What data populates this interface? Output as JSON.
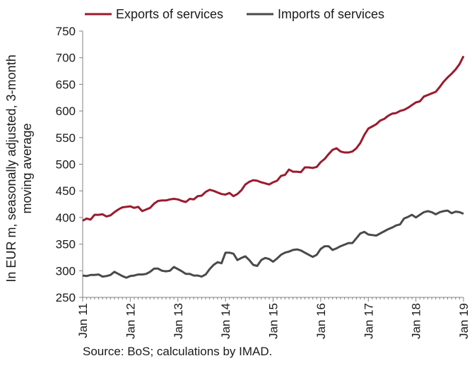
{
  "chart_data": {
    "type": "line",
    "ylabel_lines": [
      "In EUR m, seasonally adjusted, 3-month",
      "moving average"
    ],
    "ylim": [
      250,
      750
    ],
    "yticks": [
      250,
      300,
      350,
      400,
      450,
      500,
      550,
      600,
      650,
      700,
      750
    ],
    "xlim": [
      "2011-01",
      "2019-01"
    ],
    "xticks": [
      "Jan 11",
      "Jan 12",
      "Jan 13",
      "Jan 14",
      "Jan 15",
      "Jan 16",
      "Jan 17",
      "Jan 18",
      "Jan 19"
    ],
    "legend_position": "top",
    "grid": false,
    "x_months": [
      "2011-01",
      "2011-02",
      "2011-03",
      "2011-04",
      "2011-05",
      "2011-06",
      "2011-07",
      "2011-08",
      "2011-09",
      "2011-10",
      "2011-11",
      "2011-12",
      "2012-01",
      "2012-02",
      "2012-03",
      "2012-04",
      "2012-05",
      "2012-06",
      "2012-07",
      "2012-08",
      "2012-09",
      "2012-10",
      "2012-11",
      "2012-12",
      "2013-01",
      "2013-02",
      "2013-03",
      "2013-04",
      "2013-05",
      "2013-06",
      "2013-07",
      "2013-08",
      "2013-09",
      "2013-10",
      "2013-11",
      "2013-12",
      "2014-01",
      "2014-02",
      "2014-03",
      "2014-04",
      "2014-05",
      "2014-06",
      "2014-07",
      "2014-08",
      "2014-09",
      "2014-10",
      "2014-11",
      "2014-12",
      "2015-01",
      "2015-02",
      "2015-03",
      "2015-04",
      "2015-05",
      "2015-06",
      "2015-07",
      "2015-08",
      "2015-09",
      "2015-10",
      "2015-11",
      "2015-12",
      "2016-01",
      "2016-02",
      "2016-03",
      "2016-04",
      "2016-05",
      "2016-06",
      "2016-07",
      "2016-08",
      "2016-09",
      "2016-10",
      "2016-11",
      "2016-12",
      "2017-01",
      "2017-02",
      "2017-03",
      "2017-04",
      "2017-05",
      "2017-06",
      "2017-07",
      "2017-08",
      "2017-09",
      "2017-10",
      "2017-11",
      "2017-12",
      "2018-01",
      "2018-02",
      "2018-03",
      "2018-04",
      "2018-05",
      "2018-06",
      "2018-07",
      "2018-08",
      "2018-09",
      "2018-10",
      "2018-11",
      "2018-12",
      "2019-01"
    ],
    "series": [
      {
        "name": "Exports of services",
        "color": "#9b1b2e",
        "values": [
          394,
          398,
          396,
          405,
          405,
          406,
          402,
          404,
          410,
          415,
          419,
          420,
          421,
          418,
          420,
          412,
          415,
          418,
          426,
          431,
          432,
          432,
          434,
          435,
          434,
          431,
          429,
          435,
          434,
          440,
          441,
          448,
          452,
          450,
          447,
          444,
          443,
          446,
          440,
          444,
          451,
          462,
          467,
          470,
          469,
          466,
          464,
          462,
          466,
          469,
          478,
          480,
          490,
          486,
          486,
          485,
          494,
          494,
          493,
          495,
          504,
          510,
          519,
          527,
          530,
          524,
          522,
          522,
          524,
          530,
          540,
          555,
          567,
          571,
          575,
          582,
          585,
          591,
          595,
          596,
          600,
          602,
          606,
          611,
          616,
          618,
          627,
          630,
          633,
          636,
          645,
          655,
          663,
          670,
          678,
          688,
          703
        ]
      },
      {
        "name": "Imports of services",
        "color": "#4a4a4a",
        "values": [
          291,
          290,
          292,
          292,
          293,
          289,
          290,
          292,
          298,
          294,
          290,
          287,
          290,
          291,
          293,
          293,
          294,
          298,
          304,
          304,
          300,
          299,
          300,
          307,
          303,
          299,
          294,
          294,
          291,
          291,
          289,
          293,
          303,
          311,
          316,
          314,
          334,
          334,
          332,
          320,
          324,
          327,
          320,
          311,
          309,
          320,
          324,
          322,
          317,
          323,
          330,
          334,
          336,
          339,
          340,
          338,
          334,
          330,
          326,
          330,
          341,
          346,
          346,
          339,
          342,
          346,
          349,
          352,
          352,
          361,
          370,
          373,
          368,
          367,
          366,
          370,
          374,
          378,
          381,
          385,
          387,
          398,
          401,
          405,
          400,
          405,
          410,
          412,
          410,
          406,
          410,
          412,
          413,
          408,
          411,
          410,
          407
        ]
      }
    ]
  },
  "source_text": "Source: BoS; calculations by IMAD."
}
